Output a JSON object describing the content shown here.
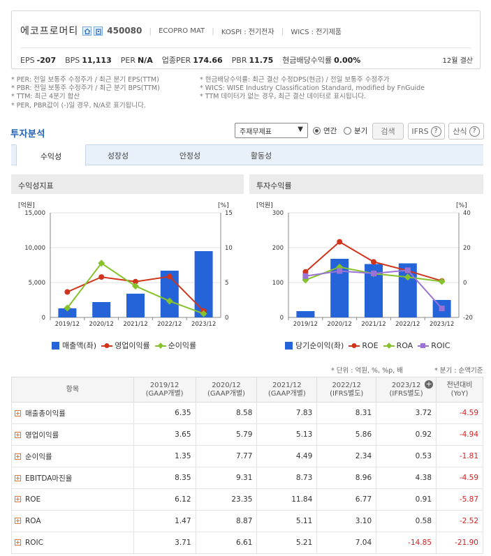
{
  "header": {
    "company_name": "에코프로머티",
    "stock_code": "450080",
    "eng_name": "ECOPRO MAT",
    "market": "KOSPI : 전기전자",
    "wics": "WICS : 전기제품",
    "icons": [
      "home-icon",
      "building-icon"
    ],
    "metrics": [
      {
        "label": "EPS",
        "value": "-207"
      },
      {
        "label": "BPS",
        "value": "11,113"
      },
      {
        "label": "PER",
        "value": "N/A"
      },
      {
        "label": "업종PER",
        "value": "174.66"
      },
      {
        "label": "PBR",
        "value": "11.75"
      },
      {
        "label": "현금배당수익률",
        "value": "0.00%"
      }
    ],
    "settlement": "12월 결산"
  },
  "notes": {
    "left": [
      "* PER: 전일 보통주 수정주가 / 최근 분기 EPS(TTM)",
      "* PBR: 전일 보통주 수정주가 / 최근 분기 BPS(TTM)",
      "* TTM: 최근 4분기 합산",
      "* PER, PBR값이 (-)일 경우, N/A로 표기됩니다."
    ],
    "right": [
      "* 현금배당수익률: 최근 결산 수정DPS(현금) / 전일 보통주 수정주가",
      "* WICS: WISE Industry Classification Standard, modified by FnGuide",
      "* TTM 데이터가 없는 경우, 최근 결산 데이터로 표시됩니다."
    ]
  },
  "analysis": {
    "title": "투자분석",
    "select_value": "주재무제표",
    "radio_annual": "연간",
    "radio_quarter": "분기",
    "search_button": "검색",
    "ifrs_button": "IFRS",
    "formula_button": "산식",
    "tabs": [
      "수익성",
      "성장성",
      "안정성",
      "활동성"
    ]
  },
  "chart_left_title": "수익성지표",
  "chart_right_title": "투자수익률",
  "chart_data": [
    {
      "type": "bar",
      "title": "수익성지표",
      "categories": [
        "2019/12",
        "2020/12",
        "2021/12",
        "2022/12",
        "2023/12"
      ],
      "left_unit": "[억원]",
      "right_unit": "[%]",
      "left_ticks": [
        "15,000",
        "10,000",
        "5,000",
        "0"
      ],
      "right_ticks": [
        "15",
        "10",
        "5",
        "0"
      ],
      "ylim_left": [
        0,
        15000
      ],
      "ylim_right": [
        0,
        15
      ],
      "series": [
        {
          "name": "매출액(좌)",
          "kind": "bar",
          "axis": "left",
          "color": "#2563d8",
          "values": [
            1300,
            2200,
            3400,
            6700,
            9500
          ]
        },
        {
          "name": "영업이익률",
          "kind": "line",
          "axis": "right",
          "color": "#d0341a",
          "values": [
            3.65,
            5.79,
            5.13,
            5.86,
            0.92
          ]
        },
        {
          "name": "순이익률",
          "kind": "line",
          "axis": "right",
          "color": "#86c22c",
          "values": [
            1.35,
            7.77,
            4.49,
            2.34,
            0.53
          ]
        }
      ],
      "legend": "bottom"
    },
    {
      "type": "bar",
      "title": "투자수익률",
      "categories": [
        "2019/12",
        "2020/12",
        "2021/12",
        "2022/12",
        "2023/12"
      ],
      "left_unit": "[억원]",
      "right_unit": "[%]",
      "left_ticks": [
        "300",
        "200",
        "100",
        "0"
      ],
      "right_ticks": [
        "40",
        "20",
        "0",
        "-20"
      ],
      "ylim_left": [
        0,
        300
      ],
      "ylim_right": [
        -20,
        40
      ],
      "series": [
        {
          "name": "당기순이익(좌)",
          "kind": "bar",
          "axis": "left",
          "color": "#2563d8",
          "values": [
            18,
            168,
            153,
            155,
            50
          ]
        },
        {
          "name": "ROE",
          "kind": "line",
          "axis": "right",
          "color": "#d0341a",
          "values": [
            6.12,
            23.35,
            11.84,
            6.77,
            0.91
          ]
        },
        {
          "name": "ROA",
          "kind": "line",
          "axis": "right",
          "color": "#86c22c",
          "values": [
            1.47,
            8.87,
            5.11,
            3.1,
            0.58
          ]
        },
        {
          "name": "ROIC",
          "kind": "line",
          "axis": "right",
          "color": "#9b72d6",
          "values": [
            3.71,
            6.61,
            5.21,
            7.04,
            -14.85
          ]
        }
      ],
      "legend": "bottom"
    }
  ],
  "table": {
    "unit_note": "* 단위 : 억원, %, %p, 배",
    "basis_note": "* 분기 : 순액기준",
    "headers": [
      "항목",
      "2019/12\n(GAAP개별)",
      "2020/12\n(GAAP개별)",
      "2021/12\n(GAAP개별)",
      "2022/12\n(IFRS별도)",
      "2023/12\n(IFRS별도)",
      "전년대비\n(YoY)"
    ],
    "rows": [
      {
        "label": "매출총이익률",
        "values": [
          "6.35",
          "8.58",
          "7.83",
          "8.31",
          "3.72"
        ],
        "yoy": "-4.59"
      },
      {
        "label": "영업이익률",
        "values": [
          "3.65",
          "5.79",
          "5.13",
          "5.86",
          "0.92"
        ],
        "yoy": "-4.94"
      },
      {
        "label": "순이익률",
        "values": [
          "1.35",
          "7.77",
          "4.49",
          "2.34",
          "0.53"
        ],
        "yoy": "-1.81"
      },
      {
        "label": "EBITDA마진율",
        "values": [
          "8.35",
          "9.31",
          "8.73",
          "8.96",
          "4.38"
        ],
        "yoy": "-4.59"
      },
      {
        "label": "ROE",
        "values": [
          "6.12",
          "23.35",
          "11.84",
          "6.77",
          "0.91"
        ],
        "yoy": "-5.87"
      },
      {
        "label": "ROA",
        "values": [
          "1.47",
          "8.87",
          "5.11",
          "3.10",
          "0.58"
        ],
        "yoy": "-2.52"
      },
      {
        "label": "ROIC",
        "values": [
          "3.71",
          "6.61",
          "5.21",
          "7.04",
          "-14.85"
        ],
        "yoy": "-21.90"
      }
    ]
  }
}
